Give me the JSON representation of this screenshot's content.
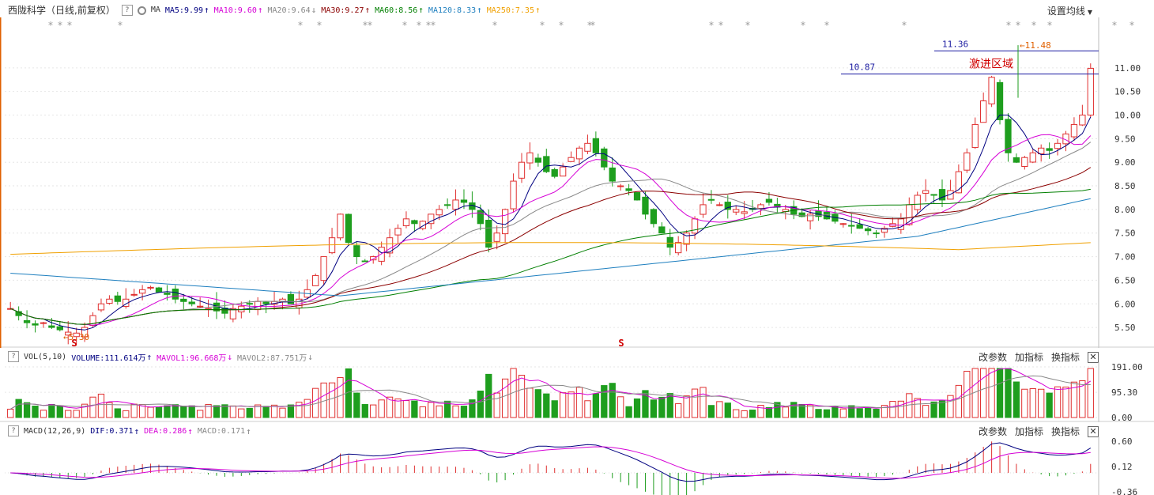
{
  "header": {
    "stock": "西陇科学（日线,前复权）",
    "help": "?",
    "ma_label": "MA",
    "ma": [
      {
        "text": "MA5:9.99",
        "color": "#000080",
        "arrow": "↑"
      },
      {
        "text": "MA10:9.60",
        "color": "#d600d6",
        "arrow": "↑"
      },
      {
        "text": "MA20:9.64",
        "color": "#888888",
        "arrow": "↓"
      },
      {
        "text": "MA30:9.27",
        "color": "#8b0000",
        "arrow": "↑"
      },
      {
        "text": "MA60:8.56",
        "color": "#007f00",
        "arrow": "↑"
      },
      {
        "text": "MA120:8.33",
        "color": "#1e7fbf",
        "arrow": "↑"
      },
      {
        "text": "MA250:7.35",
        "color": "#f0a000",
        "arrow": "↑"
      }
    ],
    "settings": "设置均线"
  },
  "price_axis": [
    "11.00",
    "10.50",
    "10.00",
    "9.50",
    "9.00",
    "8.50",
    "8.00",
    "7.50",
    "7.00",
    "6.50",
    "6.00",
    "5.50"
  ],
  "annotations": {
    "high_line": "11.36",
    "mid_line": "10.87",
    "peak": "11.48",
    "low": "5.30",
    "zone": "激进区域",
    "s_mark": "S"
  },
  "volume_panel": {
    "help": "?",
    "title": "VOL(5,10)",
    "volume": "VOLUME:111.614万",
    "mavol1": "MAVOL1:96.668万",
    "mavol2": "MAVOL2:87.751万",
    "axis": [
      "191.00",
      "95.30",
      "0.00"
    ]
  },
  "macd_panel": {
    "help": "?",
    "title": "MACD(12,26,9)",
    "dif": "DIF:0.371",
    "dea": "DEA:0.286",
    "macd": "MACD:0.171",
    "axis": [
      "0.60",
      "0.12",
      "-0.36"
    ]
  },
  "tools": {
    "params": "改参数",
    "add": "加指标",
    "switch": "换指标",
    "close": "✕"
  },
  "chart_data": {
    "type": "candlestick",
    "y_range": [
      5.2,
      11.6
    ],
    "closes": [
      5.9,
      5.75,
      5.6,
      5.55,
      5.6,
      5.5,
      5.45,
      5.4,
      5.38,
      5.5,
      5.75,
      6.0,
      6.1,
      6.05,
      6.1,
      6.2,
      6.3,
      6.35,
      6.25,
      6.2,
      6.1,
      6.05,
      6.0,
      5.95,
      5.9,
      5.85,
      5.8,
      5.9,
      5.95,
      6.0,
      6.05,
      6.0,
      6.05,
      6.1,
      6.0,
      6.1,
      6.3,
      6.6,
      7.0,
      7.4,
      7.9,
      7.3,
      7.0,
      6.9,
      7.0,
      7.2,
      7.4,
      7.6,
      7.8,
      7.7,
      7.75,
      7.9,
      8.0,
      8.1,
      8.2,
      8.15,
      8.0,
      7.7,
      7.2,
      7.5,
      8.0,
      8.6,
      9.0,
      9.2,
      9.0,
      8.8,
      8.7,
      8.9,
      9.1,
      9.3,
      9.4,
      9.2,
      8.9,
      8.6,
      8.5,
      8.4,
      8.2,
      7.9,
      7.7,
      7.5,
      7.2,
      7.3,
      7.5,
      7.8,
      8.1,
      8.2,
      8.1,
      8.0,
      8.0,
      7.95,
      8.0,
      8.1,
      8.15,
      8.05,
      8.0,
      7.9,
      7.85,
      7.9,
      7.85,
      7.8,
      7.75,
      7.7,
      7.65,
      7.6,
      7.55,
      7.5,
      7.6,
      7.7,
      7.8,
      8.1,
      8.3,
      8.4,
      8.3,
      8.2,
      8.4,
      8.8,
      9.2,
      9.8,
      10.3,
      10.8,
      9.9,
      9.2,
      9.0,
      9.1,
      9.2,
      9.3,
      9.25,
      9.4,
      9.6,
      9.8,
      10.0,
      10.99
    ],
    "volume_axis": [
      0,
      191
    ],
    "macd_axis": [
      -0.36,
      0.6
    ]
  }
}
